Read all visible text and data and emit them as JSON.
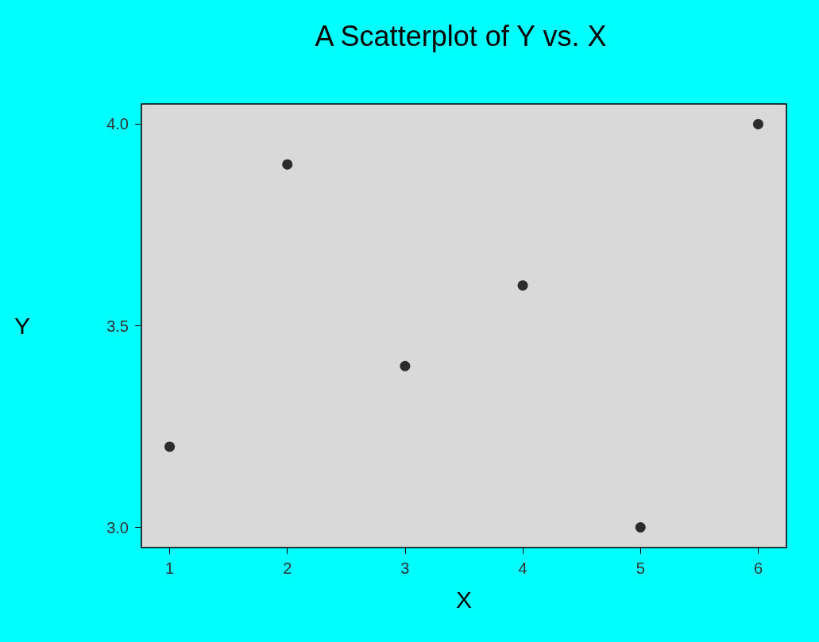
{
  "chart_data": {
    "type": "scatter",
    "title": "A Scatterplot of Y vs. X",
    "xlabel": "X",
    "ylabel": "Y",
    "x": [
      1,
      2,
      3,
      4,
      5,
      6
    ],
    "values": [
      3.2,
      3.9,
      3.4,
      3.6,
      3.0,
      4.0
    ],
    "color": "#000000",
    "marker": "circle",
    "grid": false,
    "xlim": [
      0.76,
      6.24
    ],
    "xticks": [
      1,
      2,
      3,
      4,
      5,
      6
    ],
    "ylim": [
      2.95,
      4.05
    ],
    "yticks": [
      {
        "value": 3,
        "label": "3.0"
      },
      3.5,
      {
        "value": 4,
        "label": "4.0"
      }
    ]
  }
}
